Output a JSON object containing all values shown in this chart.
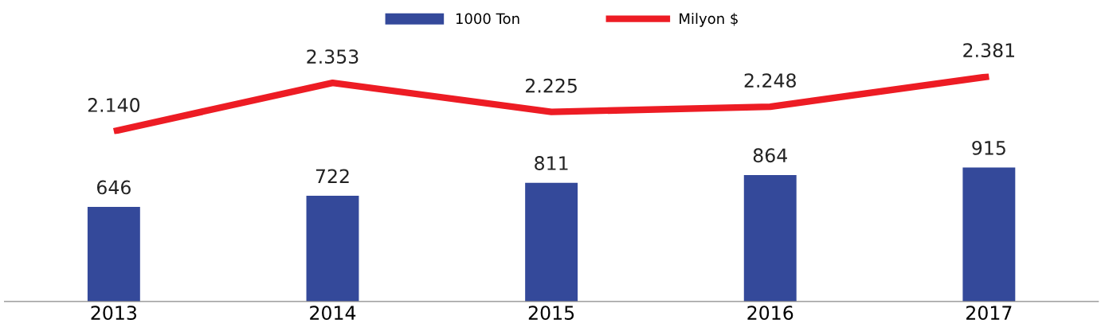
{
  "chart_data": [
    {
      "type": "line",
      "categories": [
        "2013",
        "2014",
        "2015",
        "2016",
        "2017"
      ],
      "series": [
        {
          "name": "Milyon $",
          "color": "#ed1c24",
          "values": [
            2140,
            2353,
            2225,
            2248,
            2381
          ],
          "value_labels": [
            "2.140",
            "2.353",
            "2.225",
            "2.248",
            "2.381"
          ]
        }
      ],
      "tick_labels": false,
      "legend": "top",
      "grid": false,
      "marker": "none",
      "line_style": "solid"
    },
    {
      "type": "bar",
      "categories": [
        "2013",
        "2014",
        "2015",
        "2016",
        "2017"
      ],
      "series": [
        {
          "name": "1000 Ton",
          "color": "#34499a",
          "values": [
            646,
            722,
            811,
            864,
            915
          ],
          "value_labels": [
            "646",
            "722",
            "811",
            "864",
            "915"
          ]
        }
      ],
      "tick_labels": "x",
      "legend": "top",
      "grid": false
    }
  ]
}
